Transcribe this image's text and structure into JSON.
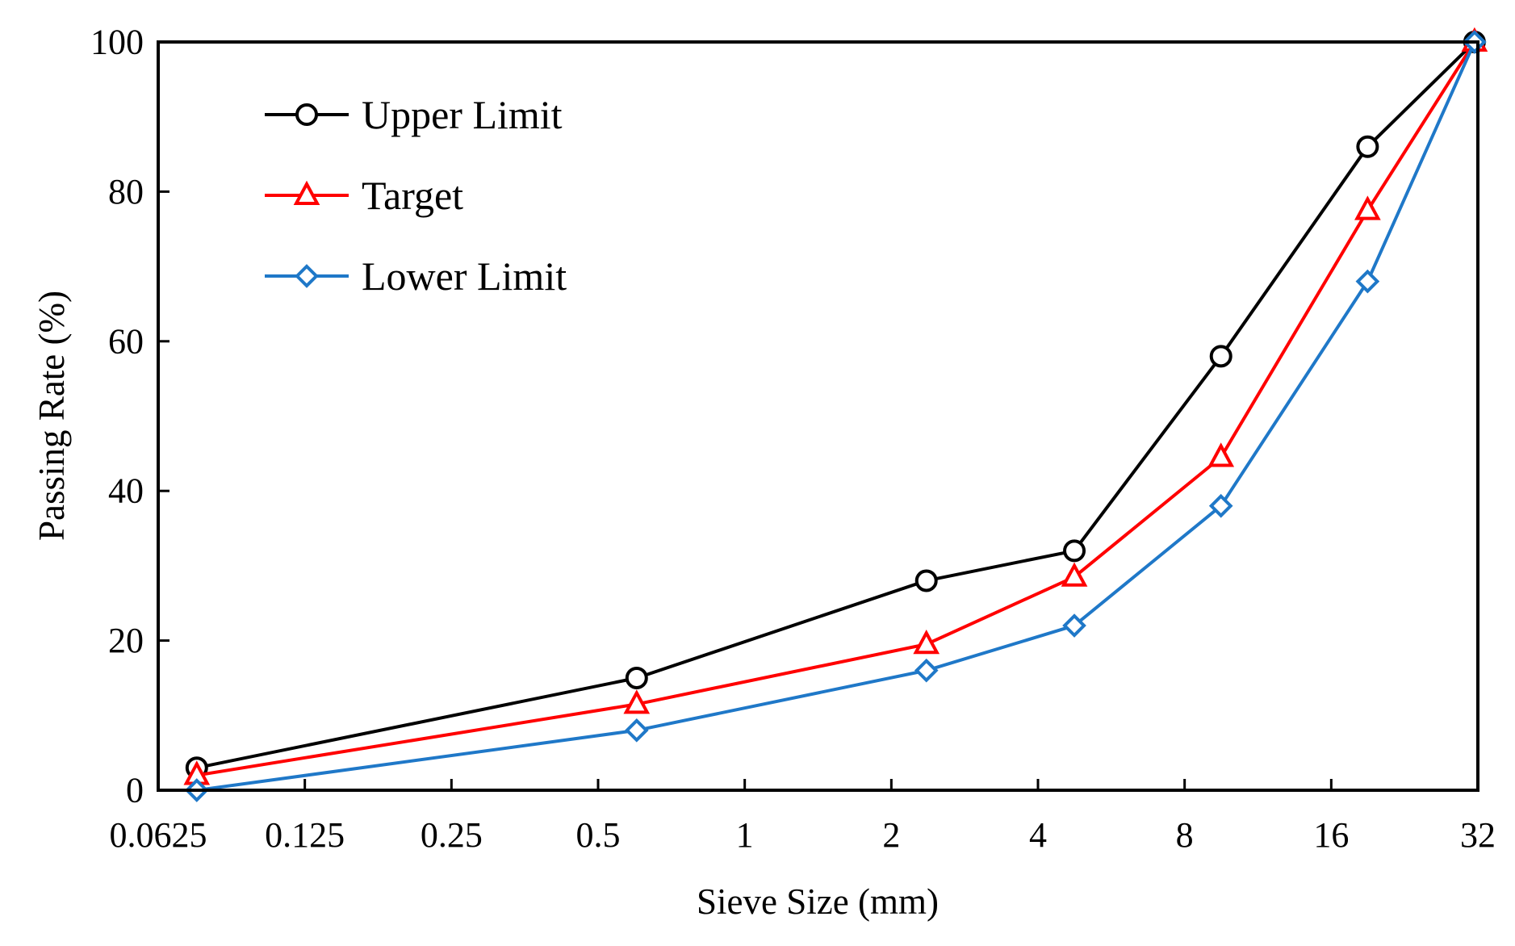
{
  "chart_data": {
    "type": "line",
    "title": "",
    "xlabel": "Sieve Size (mm)",
    "ylabel": "Passing Rate (%)",
    "xscale": "log2",
    "xlim": [
      0.0625,
      32
    ],
    "ylim": [
      0,
      100
    ],
    "x_ticks": [
      0.0625,
      0.125,
      0.25,
      0.5,
      1,
      2,
      4,
      8,
      16,
      32
    ],
    "x_tick_labels": [
      "0.0625",
      "0.125",
      "0.25",
      "0.5",
      "1",
      "2",
      "4",
      "8",
      "16",
      "32"
    ],
    "y_ticks": [
      0,
      20,
      40,
      60,
      80,
      100
    ],
    "y_tick_labels": [
      "0",
      "20",
      "40",
      "60",
      "80",
      "100"
    ],
    "grid": false,
    "legend_position": "top-left",
    "x": [
      0.075,
      0.6,
      2.36,
      4.75,
      9.5,
      19,
      31.5
    ],
    "series": [
      {
        "name": "Upper Limit",
        "values": [
          3,
          15,
          28,
          32,
          58,
          86,
          100
        ],
        "color": "#000000",
        "marker": "circle"
      },
      {
        "name": "Target",
        "values": [
          2,
          11.5,
          19.5,
          28.5,
          44.5,
          77.5,
          100
        ],
        "color": "#ff0000",
        "marker": "triangle"
      },
      {
        "name": "Lower Limit",
        "values": [
          0,
          8,
          16,
          22,
          38,
          68,
          100
        ],
        "color": "#1f78c8",
        "marker": "diamond"
      }
    ]
  }
}
